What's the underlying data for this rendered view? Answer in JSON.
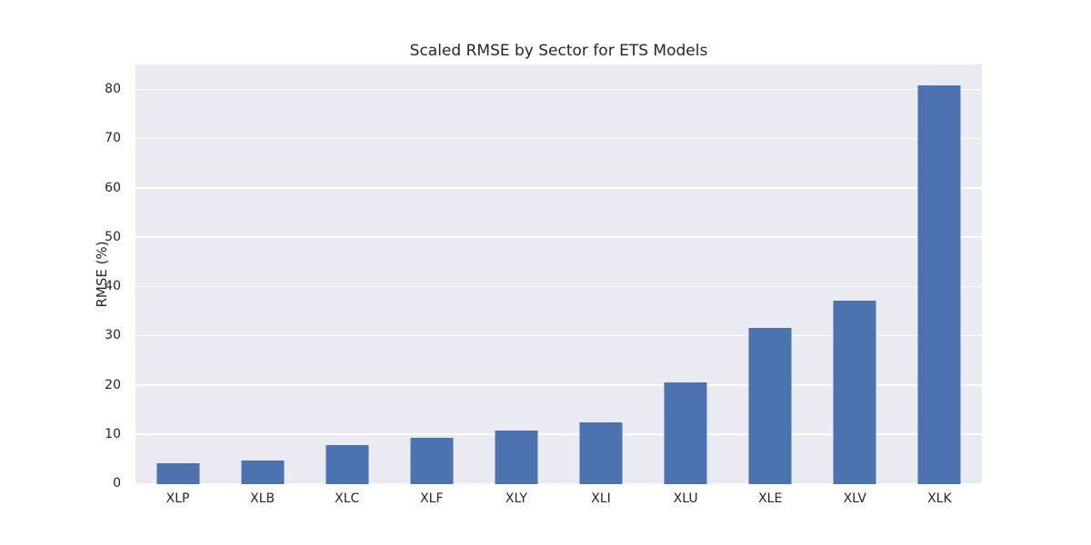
{
  "chart_data": {
    "type": "bar",
    "title": "Scaled RMSE by Sector for ETS Models",
    "xlabel": "",
    "ylabel": "RMSE (%)",
    "categories": [
      "XLP",
      "XLB",
      "XLC",
      "XLF",
      "XLY",
      "XLI",
      "XLU",
      "XLE",
      "XLV",
      "XLK"
    ],
    "values": [
      4.3,
      4.8,
      8.0,
      9.5,
      10.9,
      12.6,
      20.6,
      31.7,
      37.2,
      81.0
    ],
    "yticks": [
      0,
      10,
      20,
      30,
      40,
      50,
      60,
      70,
      80
    ],
    "ylim": [
      0,
      85.2
    ],
    "grid": true,
    "legend": false,
    "colors": {
      "bar": "#4C72B0",
      "plot_background": "#EAEAF2",
      "gridline": "#FFFFFF",
      "figure_background": "#FFFFFF",
      "text": "#262626"
    }
  }
}
